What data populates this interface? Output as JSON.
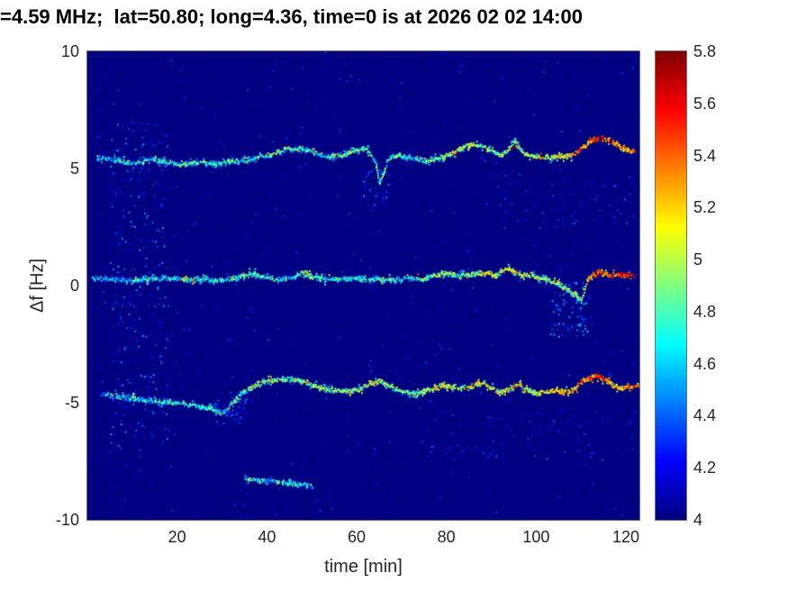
{
  "chart_data": {
    "type": "heatmap",
    "title": "=4.59 MHz;  lat=50.80; long=4.36, time=0 is at 2026 02 02 14:00",
    "xlabel": "time [min]",
    "ylabel": "Δf [Hz]",
    "xlim": [
      0,
      123
    ],
    "ylim": [
      -10,
      10
    ],
    "clim": [
      4,
      5.8
    ],
    "colormap": "jet",
    "background_value": 4.0,
    "grid": false,
    "legend": "none",
    "colorbar_position": "right",
    "xticks": [
      20,
      40,
      60,
      80,
      100,
      120
    ],
    "yticks": [
      10,
      5,
      0,
      -5,
      -10
    ],
    "colorbar_ticks": [
      5.8,
      5.6,
      5.4,
      5.2,
      5,
      4.8,
      4.6,
      4.4,
      4.2,
      4
    ],
    "series": [
      {
        "name": "upper-doppler-trace",
        "points": [
          [
            2,
            5.5,
            4.5
          ],
          [
            5,
            5.45,
            4.6
          ],
          [
            8,
            5.3,
            4.7
          ],
          [
            11,
            5.25,
            4.6
          ],
          [
            14,
            5.45,
            4.7
          ],
          [
            17,
            5.3,
            4.6
          ],
          [
            20,
            5.2,
            4.7
          ],
          [
            23,
            5.25,
            4.8
          ],
          [
            26,
            5.3,
            4.8
          ],
          [
            29,
            5.25,
            4.7
          ],
          [
            32,
            5.35,
            4.8
          ],
          [
            35,
            5.4,
            4.7
          ],
          [
            38,
            5.5,
            4.8
          ],
          [
            41,
            5.65,
            4.9
          ],
          [
            44,
            5.85,
            4.8
          ],
          [
            47,
            5.9,
            4.8
          ],
          [
            50,
            5.75,
            4.7
          ],
          [
            53,
            5.5,
            4.7
          ],
          [
            56,
            5.55,
            4.8
          ],
          [
            59,
            5.8,
            4.9
          ],
          [
            62,
            5.9,
            4.8
          ],
          [
            64,
            5.3,
            4.7
          ],
          [
            65,
            4.4,
            4.7
          ],
          [
            66,
            4.9,
            4.8
          ],
          [
            67,
            5.5,
            4.8
          ],
          [
            69,
            5.6,
            4.8
          ],
          [
            72,
            5.5,
            4.7
          ],
          [
            75,
            5.35,
            4.7
          ],
          [
            78,
            5.45,
            4.9
          ],
          [
            81,
            5.7,
            5.0
          ],
          [
            84,
            5.95,
            5.0
          ],
          [
            87,
            6.05,
            4.9
          ],
          [
            90,
            5.8,
            4.9
          ],
          [
            92,
            5.6,
            5.0
          ],
          [
            94,
            5.9,
            5.1
          ],
          [
            95,
            6.15,
            5.0
          ],
          [
            96,
            5.9,
            5.0
          ],
          [
            98,
            5.6,
            5.0
          ],
          [
            100,
            5.55,
            5.0
          ],
          [
            103,
            5.5,
            5.1
          ],
          [
            106,
            5.55,
            5.1
          ],
          [
            108,
            5.6,
            5.2
          ],
          [
            110,
            5.9,
            5.3
          ],
          [
            112,
            6.2,
            5.4
          ],
          [
            114,
            6.35,
            5.5
          ],
          [
            116,
            6.25,
            5.4
          ],
          [
            118,
            6.0,
            5.3
          ],
          [
            120,
            5.85,
            5.4
          ],
          [
            122,
            5.75,
            5.5
          ]
        ]
      },
      {
        "name": "center-doppler-trace",
        "points": [
          [
            1,
            0.35,
            4.5
          ],
          [
            5,
            0.3,
            4.6
          ],
          [
            9,
            0.25,
            4.6
          ],
          [
            13,
            0.3,
            4.7
          ],
          [
            17,
            0.35,
            4.7
          ],
          [
            21,
            0.3,
            4.8
          ],
          [
            25,
            0.3,
            4.7
          ],
          [
            29,
            0.25,
            4.7
          ],
          [
            33,
            0.35,
            4.7
          ],
          [
            36,
            0.55,
            4.8
          ],
          [
            39,
            0.4,
            4.7
          ],
          [
            42,
            0.3,
            4.7
          ],
          [
            45,
            0.35,
            4.6
          ],
          [
            48,
            0.55,
            4.9
          ],
          [
            50,
            0.4,
            4.8
          ],
          [
            53,
            0.3,
            4.7
          ],
          [
            56,
            0.3,
            4.8
          ],
          [
            59,
            0.35,
            4.7
          ],
          [
            62,
            0.3,
            4.7
          ],
          [
            65,
            0.3,
            4.8
          ],
          [
            68,
            0.3,
            4.7
          ],
          [
            71,
            0.35,
            4.7
          ],
          [
            74,
            0.3,
            4.8
          ],
          [
            77,
            0.45,
            4.9
          ],
          [
            80,
            0.55,
            5.0
          ],
          [
            83,
            0.45,
            4.8
          ],
          [
            86,
            0.5,
            5.0
          ],
          [
            89,
            0.6,
            5.1
          ],
          [
            91,
            0.45,
            4.9
          ],
          [
            93,
            0.75,
            5.0
          ],
          [
            95,
            0.65,
            5.1
          ],
          [
            97,
            0.45,
            5.0
          ],
          [
            99,
            0.5,
            5.0
          ],
          [
            101,
            0.35,
            5.0
          ],
          [
            103,
            0.25,
            4.9
          ],
          [
            105,
            0.1,
            5.0
          ],
          [
            107,
            -0.15,
            4.9
          ],
          [
            109,
            -0.45,
            5.0
          ],
          [
            110,
            -0.5,
            5.1
          ],
          [
            111,
            0.1,
            5.2
          ],
          [
            112,
            0.45,
            5.4
          ],
          [
            114,
            0.6,
            5.5
          ],
          [
            116,
            0.5,
            5.4
          ],
          [
            118,
            0.45,
            5.5
          ],
          [
            120,
            0.5,
            5.6
          ],
          [
            122,
            0.5,
            5.5
          ]
        ]
      },
      {
        "name": "lower-doppler-trace",
        "points": [
          [
            3,
            -4.6,
            4.5
          ],
          [
            7,
            -4.7,
            4.6
          ],
          [
            11,
            -4.8,
            4.6
          ],
          [
            15,
            -4.9,
            4.7
          ],
          [
            19,
            -4.95,
            4.7
          ],
          [
            23,
            -5.05,
            4.7
          ],
          [
            27,
            -5.2,
            4.7
          ],
          [
            30,
            -5.4,
            4.6
          ],
          [
            32,
            -5.05,
            4.7
          ],
          [
            34,
            -4.6,
            4.8
          ],
          [
            37,
            -4.25,
            4.8
          ],
          [
            40,
            -4.05,
            4.9
          ],
          [
            43,
            -3.95,
            4.9
          ],
          [
            46,
            -4.0,
            4.8
          ],
          [
            49,
            -4.15,
            4.9
          ],
          [
            52,
            -4.35,
            5.0
          ],
          [
            55,
            -4.45,
            4.9
          ],
          [
            58,
            -4.5,
            4.9
          ],
          [
            61,
            -4.35,
            5.0
          ],
          [
            63,
            -4.15,
            5.1
          ],
          [
            65,
            -4.0,
            5.0
          ],
          [
            67,
            -4.25,
            4.9
          ],
          [
            70,
            -4.5,
            4.9
          ],
          [
            73,
            -4.6,
            4.9
          ],
          [
            76,
            -4.4,
            5.0
          ],
          [
            79,
            -4.2,
            5.1
          ],
          [
            82,
            -4.35,
            5.0
          ],
          [
            85,
            -4.3,
            5.1
          ],
          [
            88,
            -4.1,
            5.1
          ],
          [
            90,
            -4.35,
            5.1
          ],
          [
            92,
            -4.55,
            5.0
          ],
          [
            94,
            -4.35,
            5.1
          ],
          [
            96,
            -4.2,
            5.2
          ],
          [
            98,
            -4.45,
            5.1
          ],
          [
            100,
            -4.6,
            5.0
          ],
          [
            102,
            -4.5,
            5.1
          ],
          [
            104,
            -4.45,
            5.2
          ],
          [
            106,
            -4.5,
            5.1
          ],
          [
            108,
            -4.45,
            5.2
          ],
          [
            110,
            -4.1,
            5.4
          ],
          [
            112,
            -3.9,
            5.5
          ],
          [
            113,
            -3.8,
            5.5
          ],
          [
            115,
            -3.95,
            5.4
          ],
          [
            117,
            -4.2,
            5.2
          ],
          [
            119,
            -4.35,
            5.3
          ],
          [
            121,
            -4.3,
            5.4
          ],
          [
            123,
            -4.25,
            5.4
          ]
        ]
      },
      {
        "name": "weak-low-trace",
        "points": [
          [
            35,
            -8.2,
            4.6
          ],
          [
            38,
            -8.3,
            4.7
          ],
          [
            41,
            -8.3,
            4.6
          ],
          [
            44,
            -8.4,
            4.7
          ],
          [
            47,
            -8.45,
            4.6
          ],
          [
            50,
            -8.5,
            4.5
          ]
        ]
      }
    ],
    "noise_clusters": [
      {
        "t": [
          1,
          123
        ],
        "f": [
          -10,
          10
        ],
        "count": 900,
        "v": [
          4.05,
          4.35
        ]
      },
      {
        "t": [
          5,
          18
        ],
        "f": [
          -7,
          7
        ],
        "count": 350,
        "v": [
          4.1,
          4.55
        ]
      },
      {
        "t": [
          28,
          36
        ],
        "f": [
          -6,
          -4.5
        ],
        "count": 80,
        "v": [
          4.1,
          4.5
        ]
      },
      {
        "t": [
          60,
          67
        ],
        "f": [
          3.2,
          5.2
        ],
        "count": 60,
        "v": [
          4.1,
          4.5
        ]
      },
      {
        "t": [
          103,
          112
        ],
        "f": [
          -2.2,
          0.2
        ],
        "count": 120,
        "v": [
          4.15,
          4.6
        ]
      },
      {
        "t": [
          75,
          122
        ],
        "f": [
          -7.5,
          -5
        ],
        "count": 120,
        "v": [
          4.05,
          4.4
        ]
      },
      {
        "t": [
          90,
          122
        ],
        "f": [
          2.5,
          5
        ],
        "count": 80,
        "v": [
          4.05,
          4.4
        ]
      }
    ]
  }
}
